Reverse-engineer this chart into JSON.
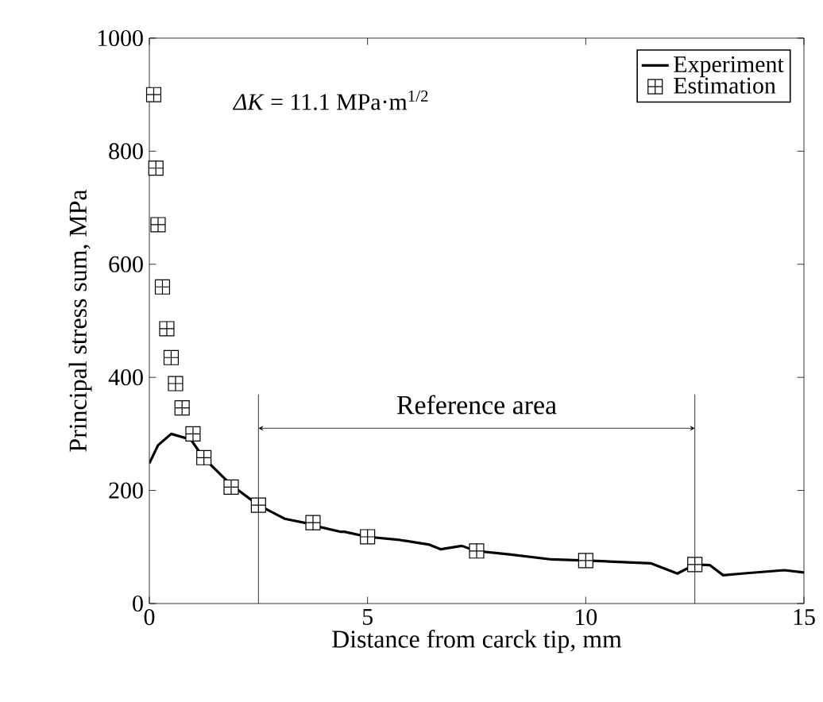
{
  "chart_data": {
    "type": "line",
    "xlabel": "Distance from carck tip, mm",
    "ylabel": "Principal stress sum, MPa",
    "annotations": [
      "*ΔK* = 11.1 MPa·m$^{1/2}$",
      "Reference area"
    ],
    "xlim": [
      0,
      15
    ],
    "xticks": [
      0,
      5,
      10,
      15
    ],
    "ylim": [
      0,
      1000
    ],
    "yticks": [
      0,
      200,
      400,
      600,
      800,
      1000
    ],
    "grid": false,
    "legend": "top right",
    "line_style": "solid",
    "ref_lines": [
      {
        "axis": "x",
        "value": 2.5
      },
      {
        "axis": "x",
        "value": 12.5
      }
    ],
    "series": [
      {
        "name": "Experiment",
        "color": "#000000",
        "marker": "none",
        "x": [
          0,
          0.2,
          0.5,
          0.95,
          1.24,
          1.87,
          2.5,
          3.1,
          3.74,
          3.87,
          4.37,
          4.47,
          5.0,
          5.69,
          6.42,
          6.68,
          7.16,
          7.48,
          8.25,
          9.22,
          10.0,
          10.65,
          11.5,
          12.1,
          12.5,
          12.84,
          13.15,
          13.58,
          14.55,
          15
        ],
        "values": [
          248,
          280,
          300,
          290,
          258,
          210,
          174,
          150,
          140,
          136,
          127,
          127,
          118,
          113,
          104,
          96,
          102,
          93,
          87,
          78,
          76,
          74,
          71,
          53,
          69,
          68,
          50,
          53,
          59,
          55
        ]
      },
      {
        "name": "Estimation",
        "type": "scatter",
        "color": "#000000",
        "marker": "square",
        "x": [
          0.1,
          0.15,
          0.2,
          0.3,
          0.4,
          0.5,
          0.6,
          0.75,
          1.0,
          1.25,
          1.875,
          2.5,
          3.75,
          5,
          7.5,
          10,
          12.5
        ],
        "values": [
          900,
          770,
          670,
          560,
          486,
          435,
          389,
          346,
          300,
          258,
          206,
          174,
          143,
          118,
          93,
          76,
          69
        ]
      }
    ]
  }
}
